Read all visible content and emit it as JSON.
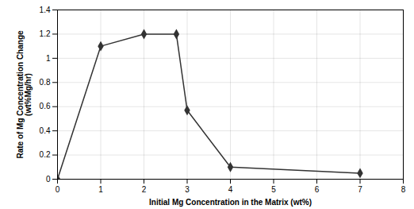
{
  "chart_data": {
    "type": "line",
    "x": [
      0,
      1,
      2,
      2.75,
      3,
      4,
      7
    ],
    "values": [
      0.0,
      1.1,
      1.2,
      1.2,
      0.57,
      0.1,
      0.05
    ],
    "color": "#333333",
    "marker": "diamond",
    "xlabel": "Initial Mg Concentration in the Matrix (wt%)",
    "ylabel": "Rate of Mg Concentration Change\n(wt%Mg/hr)",
    "xlim": [
      0,
      8
    ],
    "ylim": [
      0,
      1.4
    ],
    "xticks": [
      0,
      1,
      2,
      3,
      4,
      5,
      6,
      7,
      8
    ],
    "yticks": [
      0,
      0.2,
      0.4,
      0.6,
      0.8,
      1.0,
      1.2,
      1.4
    ],
    "grid": true
  }
}
